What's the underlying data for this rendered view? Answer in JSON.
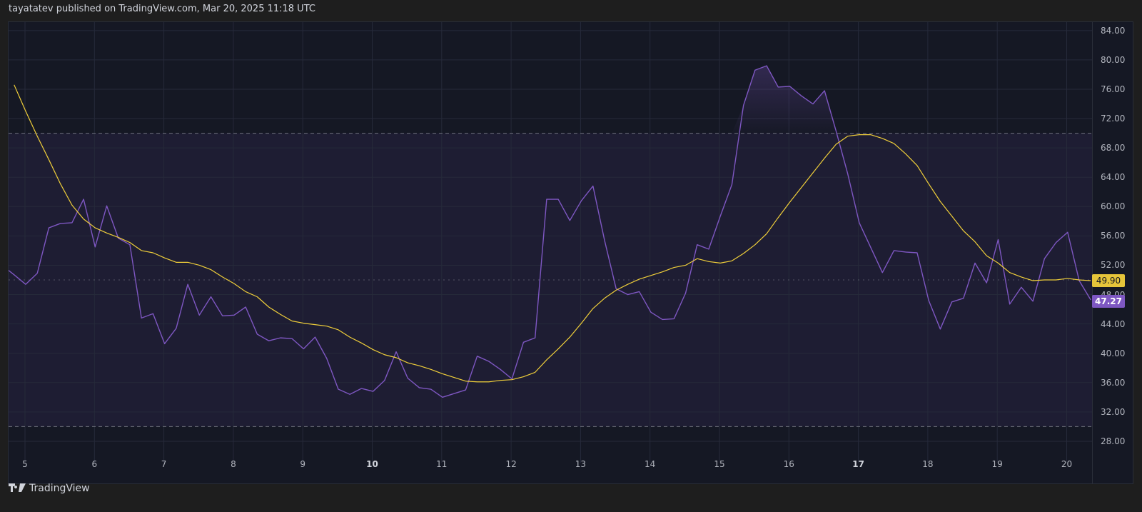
{
  "header": {
    "text": "tayatatev published on TradingView.com, Mar 20, 2025 11:18 UTC"
  },
  "footer": {
    "brand": "TradingView",
    "logo_icon": "tradingview-logo-icon"
  },
  "colors": {
    "rsi": "#7e57c2",
    "rsi_ma": "#f0cf3a",
    "background": "#151824",
    "band": "#1e1d33"
  },
  "chart_data": {
    "type": "line",
    "interval": "4h",
    "x_tick_labels": [
      "5",
      "6",
      "7",
      "8",
      "9",
      "10",
      "11",
      "12",
      "13",
      "14",
      "15",
      "16",
      "17",
      "18",
      "19",
      "20"
    ],
    "x_tick_bold": [
      "10",
      "17"
    ],
    "y_tick_labels": [
      "84.00",
      "80.00",
      "76.00",
      "72.00",
      "68.00",
      "64.00",
      "60.00",
      "56.00",
      "52.00",
      "48.00",
      "44.00",
      "40.00",
      "36.00",
      "32.00",
      "28.00"
    ],
    "ylim": [
      26,
      86
    ],
    "bands": {
      "upper": 70,
      "middle": 50,
      "lower": 30
    },
    "grid": true,
    "series": [
      {
        "role": "rsi",
        "last_label": "47.27",
        "values": [
          50.7,
          49.4,
          50.9,
          57.1,
          57.7,
          57.8,
          61.0,
          54.5,
          60.1,
          55.7,
          54.8,
          44.8,
          45.4,
          41.3,
          43.4,
          49.4,
          45.2,
          47.7,
          45.1,
          45.2,
          46.3,
          42.6,
          41.7,
          42.1,
          42.0,
          40.6,
          42.2,
          39.3,
          35.1,
          34.4,
          35.2,
          34.8,
          36.3,
          40.2,
          36.6,
          35.3,
          35.1,
          34.0,
          34.5,
          35.0,
          39.6,
          38.9,
          37.8,
          36.5,
          41.5,
          42.1,
          61.0,
          61.0,
          58.1,
          60.8,
          62.8,
          55.4,
          48.8,
          48.0,
          48.4,
          45.6,
          44.6,
          44.7,
          48.2,
          54.8,
          54.2,
          58.7,
          63.0,
          73.8,
          78.6,
          79.2,
          76.3,
          76.4,
          75.1,
          74.0,
          75.8,
          70.3,
          64.5,
          57.8,
          54.4,
          51.0,
          54.0,
          53.8,
          53.7,
          47.2,
          43.3,
          47.0,
          47.5,
          52.3,
          49.6,
          55.5,
          46.7,
          49.0,
          47.1,
          52.9,
          55.1,
          56.5,
          49.9,
          47.27
        ]
      },
      {
        "role": "rsi_ma",
        "last_label": "49.90",
        "values": [
          76.6,
          73.0,
          69.6,
          66.4,
          63.1,
          60.2,
          58.3,
          57.1,
          56.4,
          55.8,
          55.1,
          54.0,
          53.7,
          53.0,
          52.4,
          52.4,
          52.0,
          51.4,
          50.4,
          49.5,
          48.4,
          47.7,
          46.3,
          45.3,
          44.4,
          44.1,
          43.9,
          43.7,
          43.2,
          42.2,
          41.4,
          40.5,
          39.8,
          39.4,
          38.7,
          38.3,
          37.8,
          37.2,
          36.7,
          36.2,
          36.1,
          36.1,
          36.3,
          36.4,
          36.8,
          37.4,
          39.1,
          40.6,
          42.2,
          44.1,
          46.1,
          47.5,
          48.6,
          49.4,
          50.1,
          50.6,
          51.1,
          51.7,
          52.0,
          52.9,
          52.5,
          52.3,
          52.6,
          53.6,
          54.8,
          56.3,
          58.5,
          60.6,
          62.6,
          64.6,
          66.6,
          68.5,
          69.6,
          69.8,
          69.8,
          69.3,
          68.6,
          67.2,
          65.6,
          63.1,
          60.7,
          58.7,
          56.7,
          55.2,
          53.3,
          52.3,
          51.0,
          50.4,
          49.9,
          50.0,
          50.0,
          50.2,
          50.0,
          49.9
        ]
      }
    ]
  }
}
